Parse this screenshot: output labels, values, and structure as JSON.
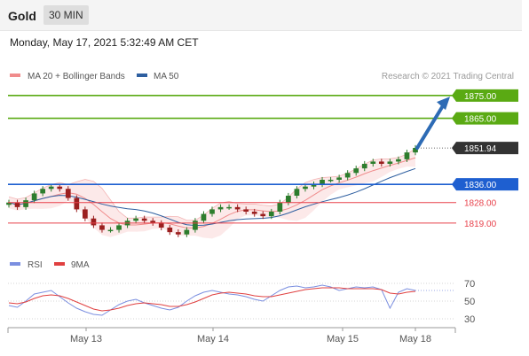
{
  "header": {
    "asset": "Gold",
    "timeframe": "30 MIN"
  },
  "timestamp": "Monday, May 17, 2021 5:32:49 AM CET",
  "colors": {
    "resistance": "#5aaa13",
    "support": "#1e5fd0",
    "minor_support": "#e8404a",
    "price_tag": "#333333",
    "arrow": "#2d6bb5",
    "candle_up": "#2d7d2d",
    "candle_down": "#9b1f1f",
    "ma20": "#f08c8c",
    "ma50": "#2e5fa0",
    "rsi": "#7b8fe0",
    "rsi_ma": "#e04040"
  },
  "chart_data": [
    {
      "type": "candlestick",
      "legend": [
        "MA 20 + Bollinger Bands",
        "MA 50"
      ],
      "credit": "Research © 2021 Trading Central",
      "x_ticks": [
        "May 13",
        "May 14",
        "May 15",
        "May 18"
      ],
      "y_range": [
        1810,
        1880
      ],
      "current_price": "1851.94",
      "levels": [
        {
          "label": "1875.00",
          "value": 1875.0,
          "kind": "resistance"
        },
        {
          "label": "1865.00",
          "value": 1865.0,
          "kind": "resistance"
        },
        {
          "label": "1836.00",
          "value": 1836.0,
          "kind": "support"
        },
        {
          "label": "1828.00",
          "value": 1828.0,
          "kind": "minor_support"
        },
        {
          "label": "1819.00",
          "value": 1819.0,
          "kind": "minor_support"
        }
      ],
      "close_series": [
        1828,
        1826,
        1829,
        1832,
        1834,
        1835,
        1834,
        1830,
        1825,
        1821,
        1818,
        1816,
        1816,
        1818,
        1820,
        1821,
        1820,
        1819,
        1817,
        1815,
        1814,
        1816,
        1820,
        1823,
        1825,
        1826,
        1826,
        1825,
        1824,
        1823,
        1822,
        1824,
        1828,
        1831,
        1834,
        1835,
        1836,
        1838,
        1838,
        1839,
        1841,
        1843,
        1845,
        1846,
        1845,
        1846,
        1847,
        1850,
        1852
      ]
    },
    {
      "type": "line",
      "legend": [
        "RSI",
        "9MA"
      ],
      "y_ticks": [
        70,
        50,
        30
      ],
      "rsi": [
        45,
        43,
        50,
        58,
        60,
        62,
        55,
        48,
        42,
        38,
        35,
        34,
        40,
        46,
        50,
        52,
        48,
        45,
        42,
        40,
        43,
        50,
        56,
        60,
        62,
        60,
        58,
        57,
        55,
        52,
        50,
        56,
        62,
        66,
        67,
        65,
        66,
        68,
        66,
        62,
        64,
        66,
        65,
        66,
        63,
        42,
        60,
        64,
        62
      ],
      "rsi_ma": [
        48,
        47,
        49,
        53,
        56,
        57,
        56,
        53,
        49,
        45,
        41,
        39,
        40,
        42,
        45,
        47,
        48,
        47,
        46,
        44,
        44,
        46,
        49,
        53,
        57,
        59,
        60,
        59,
        58,
        56,
        55,
        55,
        57,
        59,
        61,
        63,
        64,
        65,
        65,
        65,
        64,
        64,
        64,
        64,
        63,
        59,
        58,
        60,
        61
      ]
    }
  ]
}
